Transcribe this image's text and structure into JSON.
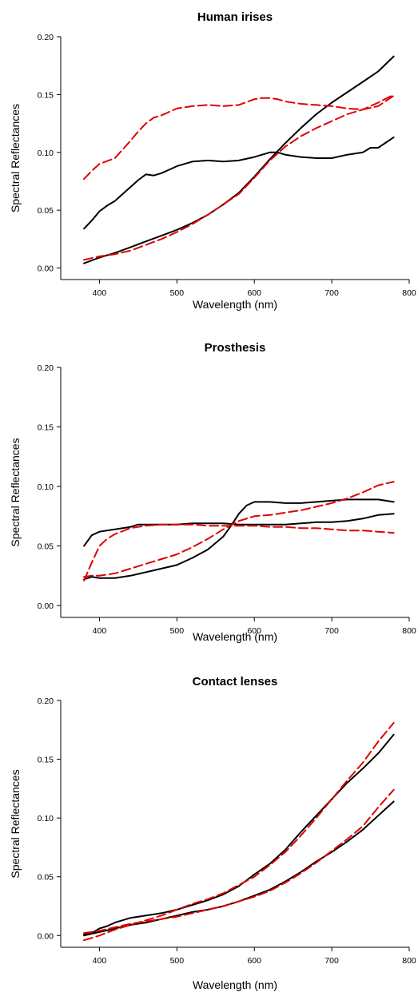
{
  "chart_data": [
    {
      "type": "line",
      "title": "Human irises",
      "xlabel": "Wavelength (nm)",
      "ylabel": "Spectral Reflectances",
      "xlim": [
        350,
        800
      ],
      "ylim": [
        -0.01,
        0.2
      ],
      "xticks": [
        "400",
        "500",
        "600",
        "700",
        "800"
      ],
      "yticks": [
        "0.00",
        "0.05",
        "0.10",
        "0.15",
        "0.20"
      ],
      "series": [
        {
          "color": "#000000",
          "dash": "solid",
          "x": [
            380,
            400,
            420,
            440,
            460,
            480,
            500,
            520,
            540,
            560,
            580,
            600,
            620,
            640,
            660,
            680,
            700,
            720,
            740,
            760,
            780
          ],
          "y": [
            0.004,
            0.009,
            0.013,
            0.018,
            0.023,
            0.028,
            0.033,
            0.039,
            0.046,
            0.055,
            0.065,
            0.079,
            0.094,
            0.108,
            0.121,
            0.133,
            0.143,
            0.152,
            0.161,
            0.17,
            0.183
          ]
        },
        {
          "color": "#000000",
          "dash": "solid",
          "x": [
            380,
            390,
            400,
            410,
            420,
            430,
            440,
            450,
            460,
            470,
            480,
            490,
            500,
            510,
            520,
            540,
            560,
            580,
            600,
            610,
            620,
            630,
            640,
            660,
            680,
            700,
            720,
            740,
            750,
            760,
            780
          ],
          "y": [
            0.034,
            0.041,
            0.049,
            0.054,
            0.058,
            0.064,
            0.07,
            0.076,
            0.081,
            0.08,
            0.082,
            0.085,
            0.088,
            0.09,
            0.092,
            0.093,
            0.092,
            0.093,
            0.096,
            0.098,
            0.1,
            0.1,
            0.098,
            0.096,
            0.095,
            0.095,
            0.098,
            0.1,
            0.104,
            0.104,
            0.113
          ]
        },
        {
          "color": "#e00000",
          "dash": "dashed",
          "x": [
            380,
            390,
            400,
            420,
            440,
            450,
            460,
            470,
            480,
            500,
            520,
            540,
            560,
            580,
            600,
            610,
            620,
            630,
            640,
            660,
            680,
            700,
            720,
            740,
            760,
            780
          ],
          "y": [
            0.077,
            0.084,
            0.09,
            0.095,
            0.11,
            0.118,
            0.125,
            0.13,
            0.132,
            0.138,
            0.14,
            0.141,
            0.14,
            0.141,
            0.146,
            0.147,
            0.147,
            0.146,
            0.144,
            0.142,
            0.141,
            0.14,
            0.138,
            0.137,
            0.14,
            0.149
          ]
        },
        {
          "color": "#e00000",
          "dash": "dashed",
          "x": [
            380,
            400,
            420,
            440,
            460,
            480,
            500,
            520,
            540,
            560,
            580,
            600,
            620,
            640,
            660,
            680,
            700,
            720,
            740,
            760,
            780
          ],
          "y": [
            0.007,
            0.01,
            0.012,
            0.015,
            0.02,
            0.025,
            0.031,
            0.038,
            0.046,
            0.055,
            0.064,
            0.078,
            0.093,
            0.105,
            0.114,
            0.121,
            0.127,
            0.133,
            0.137,
            0.143,
            0.15
          ]
        }
      ]
    },
    {
      "type": "line",
      "title": "Prosthesis",
      "xlabel": "Wavelength (nm)",
      "ylabel": "Spectral Reflectances",
      "xlim": [
        350,
        800
      ],
      "ylim": [
        -0.01,
        0.2
      ],
      "xticks": [
        "400",
        "500",
        "600",
        "700",
        "800"
      ],
      "yticks": [
        "0.00",
        "0.05",
        "0.10",
        "0.15",
        "0.20"
      ],
      "series": [
        {
          "color": "#000000",
          "dash": "solid",
          "x": [
            380,
            390,
            400,
            420,
            440,
            450,
            460,
            480,
            500,
            520,
            540,
            560,
            580,
            600,
            620,
            640,
            660,
            680,
            700,
            720,
            740,
            760,
            780
          ],
          "y": [
            0.05,
            0.059,
            0.062,
            0.064,
            0.066,
            0.068,
            0.068,
            0.068,
            0.068,
            0.069,
            0.069,
            0.069,
            0.068,
            0.068,
            0.068,
            0.068,
            0.069,
            0.07,
            0.07,
            0.071,
            0.073,
            0.076,
            0.077
          ]
        },
        {
          "color": "#000000",
          "dash": "solid",
          "x": [
            380,
            390,
            400,
            420,
            440,
            460,
            480,
            500,
            520,
            540,
            560,
            570,
            580,
            590,
            600,
            620,
            640,
            660,
            680,
            700,
            720,
            740,
            760,
            780
          ],
          "y": [
            0.022,
            0.024,
            0.023,
            0.023,
            0.025,
            0.028,
            0.031,
            0.034,
            0.04,
            0.047,
            0.058,
            0.067,
            0.077,
            0.084,
            0.087,
            0.087,
            0.086,
            0.086,
            0.087,
            0.088,
            0.089,
            0.089,
            0.089,
            0.087
          ]
        },
        {
          "color": "#e00000",
          "dash": "dashed",
          "x": [
            380,
            390,
            400,
            410,
            420,
            440,
            460,
            480,
            500,
            520,
            540,
            560,
            580,
            600,
            620,
            640,
            660,
            680,
            700,
            720,
            740,
            760,
            780
          ],
          "y": [
            0.021,
            0.036,
            0.05,
            0.056,
            0.06,
            0.065,
            0.067,
            0.068,
            0.068,
            0.068,
            0.067,
            0.067,
            0.067,
            0.067,
            0.066,
            0.066,
            0.065,
            0.065,
            0.064,
            0.063,
            0.063,
            0.062,
            0.061
          ]
        },
        {
          "color": "#e00000",
          "dash": "dashed",
          "x": [
            380,
            390,
            400,
            420,
            440,
            460,
            480,
            500,
            520,
            540,
            560,
            580,
            600,
            620,
            640,
            660,
            680,
            700,
            720,
            740,
            760,
            780
          ],
          "y": [
            0.024,
            0.025,
            0.025,
            0.027,
            0.031,
            0.035,
            0.039,
            0.043,
            0.049,
            0.056,
            0.064,
            0.071,
            0.075,
            0.076,
            0.078,
            0.08,
            0.083,
            0.086,
            0.09,
            0.095,
            0.101,
            0.104
          ]
        }
      ]
    },
    {
      "type": "line",
      "title": "Contact lenses",
      "xlabel": "Wavelength (nm)",
      "ylabel": "Spectral Reflectances",
      "xlim": [
        350,
        800
      ],
      "ylim": [
        -0.01,
        0.2
      ],
      "xticks": [
        "400",
        "500",
        "600",
        "700",
        "800"
      ],
      "yticks": [
        "0.00",
        "0.05",
        "0.10",
        "0.15",
        "0.20"
      ],
      "series": [
        {
          "color": "#000000",
          "dash": "solid",
          "x": [
            380,
            390,
            400,
            410,
            420,
            440,
            460,
            480,
            500,
            520,
            540,
            560,
            580,
            600,
            620,
            640,
            660,
            680,
            700,
            720,
            740,
            760,
            780
          ],
          "y": [
            0.001,
            0.002,
            0.006,
            0.008,
            0.011,
            0.015,
            0.017,
            0.019,
            0.022,
            0.026,
            0.03,
            0.035,
            0.042,
            0.052,
            0.061,
            0.073,
            0.088,
            0.102,
            0.116,
            0.13,
            0.142,
            0.155,
            0.171
          ]
        },
        {
          "color": "#000000",
          "dash": "solid",
          "x": [
            380,
            400,
            420,
            440,
            460,
            480,
            500,
            520,
            540,
            560,
            580,
            600,
            620,
            640,
            660,
            680,
            700,
            720,
            740,
            760,
            780
          ],
          "y": [
            0.0,
            0.003,
            0.006,
            0.009,
            0.011,
            0.014,
            0.017,
            0.02,
            0.022,
            0.025,
            0.029,
            0.034,
            0.039,
            0.046,
            0.054,
            0.063,
            0.071,
            0.08,
            0.09,
            0.102,
            0.114
          ]
        },
        {
          "color": "#e00000",
          "dash": "dashed",
          "x": [
            380,
            400,
            420,
            440,
            460,
            480,
            500,
            520,
            540,
            560,
            580,
            600,
            620,
            640,
            660,
            680,
            700,
            720,
            740,
            760,
            780
          ],
          "y": [
            -0.004,
            0.0,
            0.005,
            0.009,
            0.013,
            0.017,
            0.022,
            0.027,
            0.031,
            0.036,
            0.043,
            0.05,
            0.06,
            0.071,
            0.085,
            0.1,
            0.116,
            0.132,
            0.147,
            0.165,
            0.181
          ]
        },
        {
          "color": "#e00000",
          "dash": "dashed",
          "x": [
            380,
            400,
            420,
            440,
            460,
            480,
            500,
            520,
            540,
            560,
            580,
            600,
            620,
            640,
            660,
            680,
            700,
            720,
            740,
            760,
            780
          ],
          "y": [
            0.002,
            0.004,
            0.007,
            0.01,
            0.012,
            0.014,
            0.016,
            0.019,
            0.022,
            0.025,
            0.029,
            0.033,
            0.038,
            0.045,
            0.053,
            0.062,
            0.072,
            0.082,
            0.093,
            0.109,
            0.124
          ]
        }
      ]
    }
  ]
}
